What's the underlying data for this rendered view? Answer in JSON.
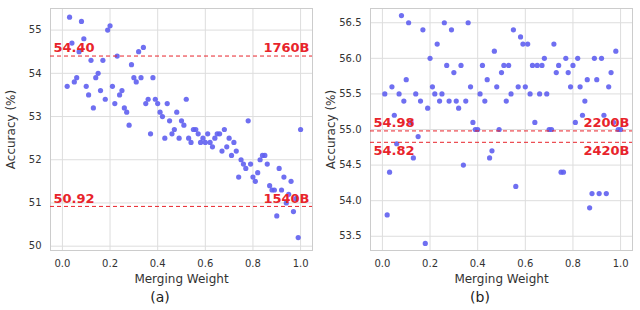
{
  "chart_data": [
    {
      "type": "scatter",
      "subtitle": "(a)",
      "x_label": "Merging Weight",
      "y_label": "Accuracy (%)",
      "color": "#5f5ff0",
      "grid": true,
      "marker": "circle",
      "xlim": [
        -0.05,
        1.05
      ],
      "ylim": [
        49.9,
        55.5
      ],
      "xticks": [
        {
          "value": 0,
          "label": "0.0"
        },
        0.2,
        0.4,
        0.6,
        0.8,
        {
          "value": 1,
          "label": "1.0"
        }
      ],
      "yticks": [
        50,
        51,
        52,
        53,
        54,
        55
      ],
      "hlines": [
        {
          "value": 54.4,
          "label": "54.40",
          "name": "1760B",
          "color": "#e8242b"
        },
        {
          "value": 50.92,
          "label": "50.92",
          "name": "1540B",
          "color": "#e8242b"
        }
      ],
      "x": [
        0.02,
        0.03,
        0.04,
        0.05,
        0.06,
        0.07,
        0.08,
        0.09,
        0.1,
        0.11,
        0.12,
        0.13,
        0.14,
        0.15,
        0.16,
        0.17,
        0.18,
        0.19,
        0.2,
        0.21,
        0.22,
        0.23,
        0.24,
        0.25,
        0.26,
        0.27,
        0.28,
        0.29,
        0.3,
        0.31,
        0.32,
        0.33,
        0.34,
        0.35,
        0.36,
        0.37,
        0.38,
        0.39,
        0.4,
        0.41,
        0.42,
        0.43,
        0.44,
        0.45,
        0.46,
        0.47,
        0.48,
        0.49,
        0.5,
        0.51,
        0.52,
        0.53,
        0.54,
        0.55,
        0.56,
        0.57,
        0.58,
        0.59,
        0.6,
        0.61,
        0.62,
        0.63,
        0.64,
        0.65,
        0.66,
        0.67,
        0.68,
        0.69,
        0.7,
        0.71,
        0.72,
        0.73,
        0.74,
        0.75,
        0.76,
        0.77,
        0.78,
        0.79,
        0.8,
        0.81,
        0.82,
        0.83,
        0.84,
        0.85,
        0.86,
        0.87,
        0.88,
        0.89,
        0.9,
        0.91,
        0.92,
        0.93,
        0.94,
        0.95,
        0.96,
        0.97,
        0.98,
        0.99,
        1.0
      ],
      "values": [
        53.7,
        55.3,
        54.7,
        53.8,
        53.9,
        54.5,
        55.2,
        54.8,
        53.7,
        53.5,
        54.3,
        53.2,
        53.9,
        54.0,
        53.6,
        54.3,
        53.4,
        55.0,
        55.1,
        53.7,
        53.3,
        54.4,
        53.5,
        53.6,
        53.2,
        53.1,
        52.8,
        54.2,
        53.9,
        53.8,
        54.5,
        53.9,
        54.6,
        53.3,
        53.4,
        52.6,
        53.9,
        53.4,
        53.3,
        53.1,
        53.0,
        52.5,
        53.3,
        52.9,
        52.6,
        52.7,
        53.1,
        52.5,
        52.9,
        52.8,
        53.4,
        52.5,
        52.4,
        52.7,
        52.7,
        52.6,
        52.4,
        52.5,
        52.4,
        52.6,
        52.4,
        52.3,
        52.5,
        52.6,
        52.6,
        52.2,
        52.7,
        52.3,
        52.5,
        52.1,
        52.4,
        52.2,
        51.6,
        52.0,
        51.9,
        51.8,
        52.9,
        51.9,
        51.6,
        51.5,
        51.7,
        52.0,
        52.1,
        52.1,
        51.9,
        51.4,
        51.3,
        51.3,
        50.7,
        51.8,
        51.3,
        51.6,
        51.0,
        51.2,
        51.5,
        50.8,
        51.1,
        50.2,
        52.7
      ]
    },
    {
      "type": "scatter",
      "subtitle": "(b)",
      "x_label": "Merging Weight",
      "y_label": "Accuracy (%)",
      "color": "#5f5ff0",
      "grid": true,
      "marker": "circle",
      "xlim": [
        -0.05,
        1.05
      ],
      "ylim": [
        53.3,
        56.7
      ],
      "xticks": [
        {
          "value": 0,
          "label": "0.0"
        },
        0.2,
        0.4,
        0.6,
        0.8,
        {
          "value": 1,
          "label": "1.0"
        }
      ],
      "yticks": [
        53.5,
        {
          "value": 54,
          "label": "54.0"
        },
        54.5,
        {
          "value": 55,
          "label": "55.0"
        },
        55.5,
        {
          "value": 56,
          "label": "56.0"
        },
        56.5
      ],
      "hlines": [
        {
          "value": 54.98,
          "label": "54.98",
          "name": "2200B",
          "color": "#e8242b"
        },
        {
          "value": 54.82,
          "label": "54.82",
          "name": "2420B",
          "color": "#e8242b"
        }
      ],
      "x": [
        0.01,
        0.02,
        0.03,
        0.04,
        0.05,
        0.06,
        0.07,
        0.08,
        0.09,
        0.1,
        0.11,
        0.12,
        0.13,
        0.14,
        0.15,
        0.16,
        0.17,
        0.18,
        0.19,
        0.2,
        0.21,
        0.22,
        0.23,
        0.24,
        0.25,
        0.26,
        0.27,
        0.28,
        0.29,
        0.3,
        0.31,
        0.32,
        0.33,
        0.34,
        0.35,
        0.36,
        0.37,
        0.38,
        0.39,
        0.4,
        0.41,
        0.42,
        0.43,
        0.44,
        0.45,
        0.46,
        0.47,
        0.48,
        0.49,
        0.5,
        0.51,
        0.52,
        0.53,
        0.54,
        0.55,
        0.56,
        0.57,
        0.58,
        0.59,
        0.6,
        0.61,
        0.62,
        0.63,
        0.64,
        0.65,
        0.66,
        0.67,
        0.68,
        0.69,
        0.7,
        0.71,
        0.72,
        0.73,
        0.74,
        0.75,
        0.76,
        0.77,
        0.78,
        0.79,
        0.8,
        0.81,
        0.82,
        0.83,
        0.84,
        0.85,
        0.86,
        0.87,
        0.88,
        0.89,
        0.9,
        0.91,
        0.92,
        0.93,
        0.94,
        0.95,
        0.96,
        0.97,
        0.98,
        0.99,
        1.0
      ],
      "values": [
        55.5,
        53.8,
        54.4,
        55.6,
        55.2,
        54.8,
        55.5,
        56.6,
        55.4,
        55.7,
        56.5,
        55.1,
        54.6,
        55.5,
        54.9,
        55.4,
        56.4,
        53.4,
        55.3,
        56.0,
        55.6,
        55.5,
        56.2,
        55.4,
        55.5,
        56.5,
        55.9,
        55.4,
        56.4,
        55.8,
        55.4,
        55.3,
        55.9,
        54.5,
        55.4,
        56.5,
        55.6,
        55.1,
        55.0,
        55.0,
        55.5,
        55.9,
        55.4,
        55.7,
        54.6,
        54.7,
        56.1,
        55.6,
        55.0,
        55.8,
        55.9,
        55.4,
        55.9,
        55.5,
        56.4,
        54.2,
        55.6,
        56.3,
        56.2,
        55.6,
        56.2,
        55.5,
        55.9,
        55.1,
        55.9,
        55.5,
        55.9,
        56.0,
        55.5,
        55.0,
        55.0,
        56.2,
        55.8,
        55.9,
        54.4,
        54.4,
        56.0,
        55.8,
        55.6,
        55.9,
        55.1,
        56.0,
        55.6,
        55.2,
        55.4,
        55.7,
        53.9,
        54.1,
        56.0,
        55.7,
        54.1,
        56.0,
        55.2,
        54.1,
        55.6,
        55.8,
        55.1,
        56.1,
        55.0,
        55.0
      ]
    }
  ]
}
